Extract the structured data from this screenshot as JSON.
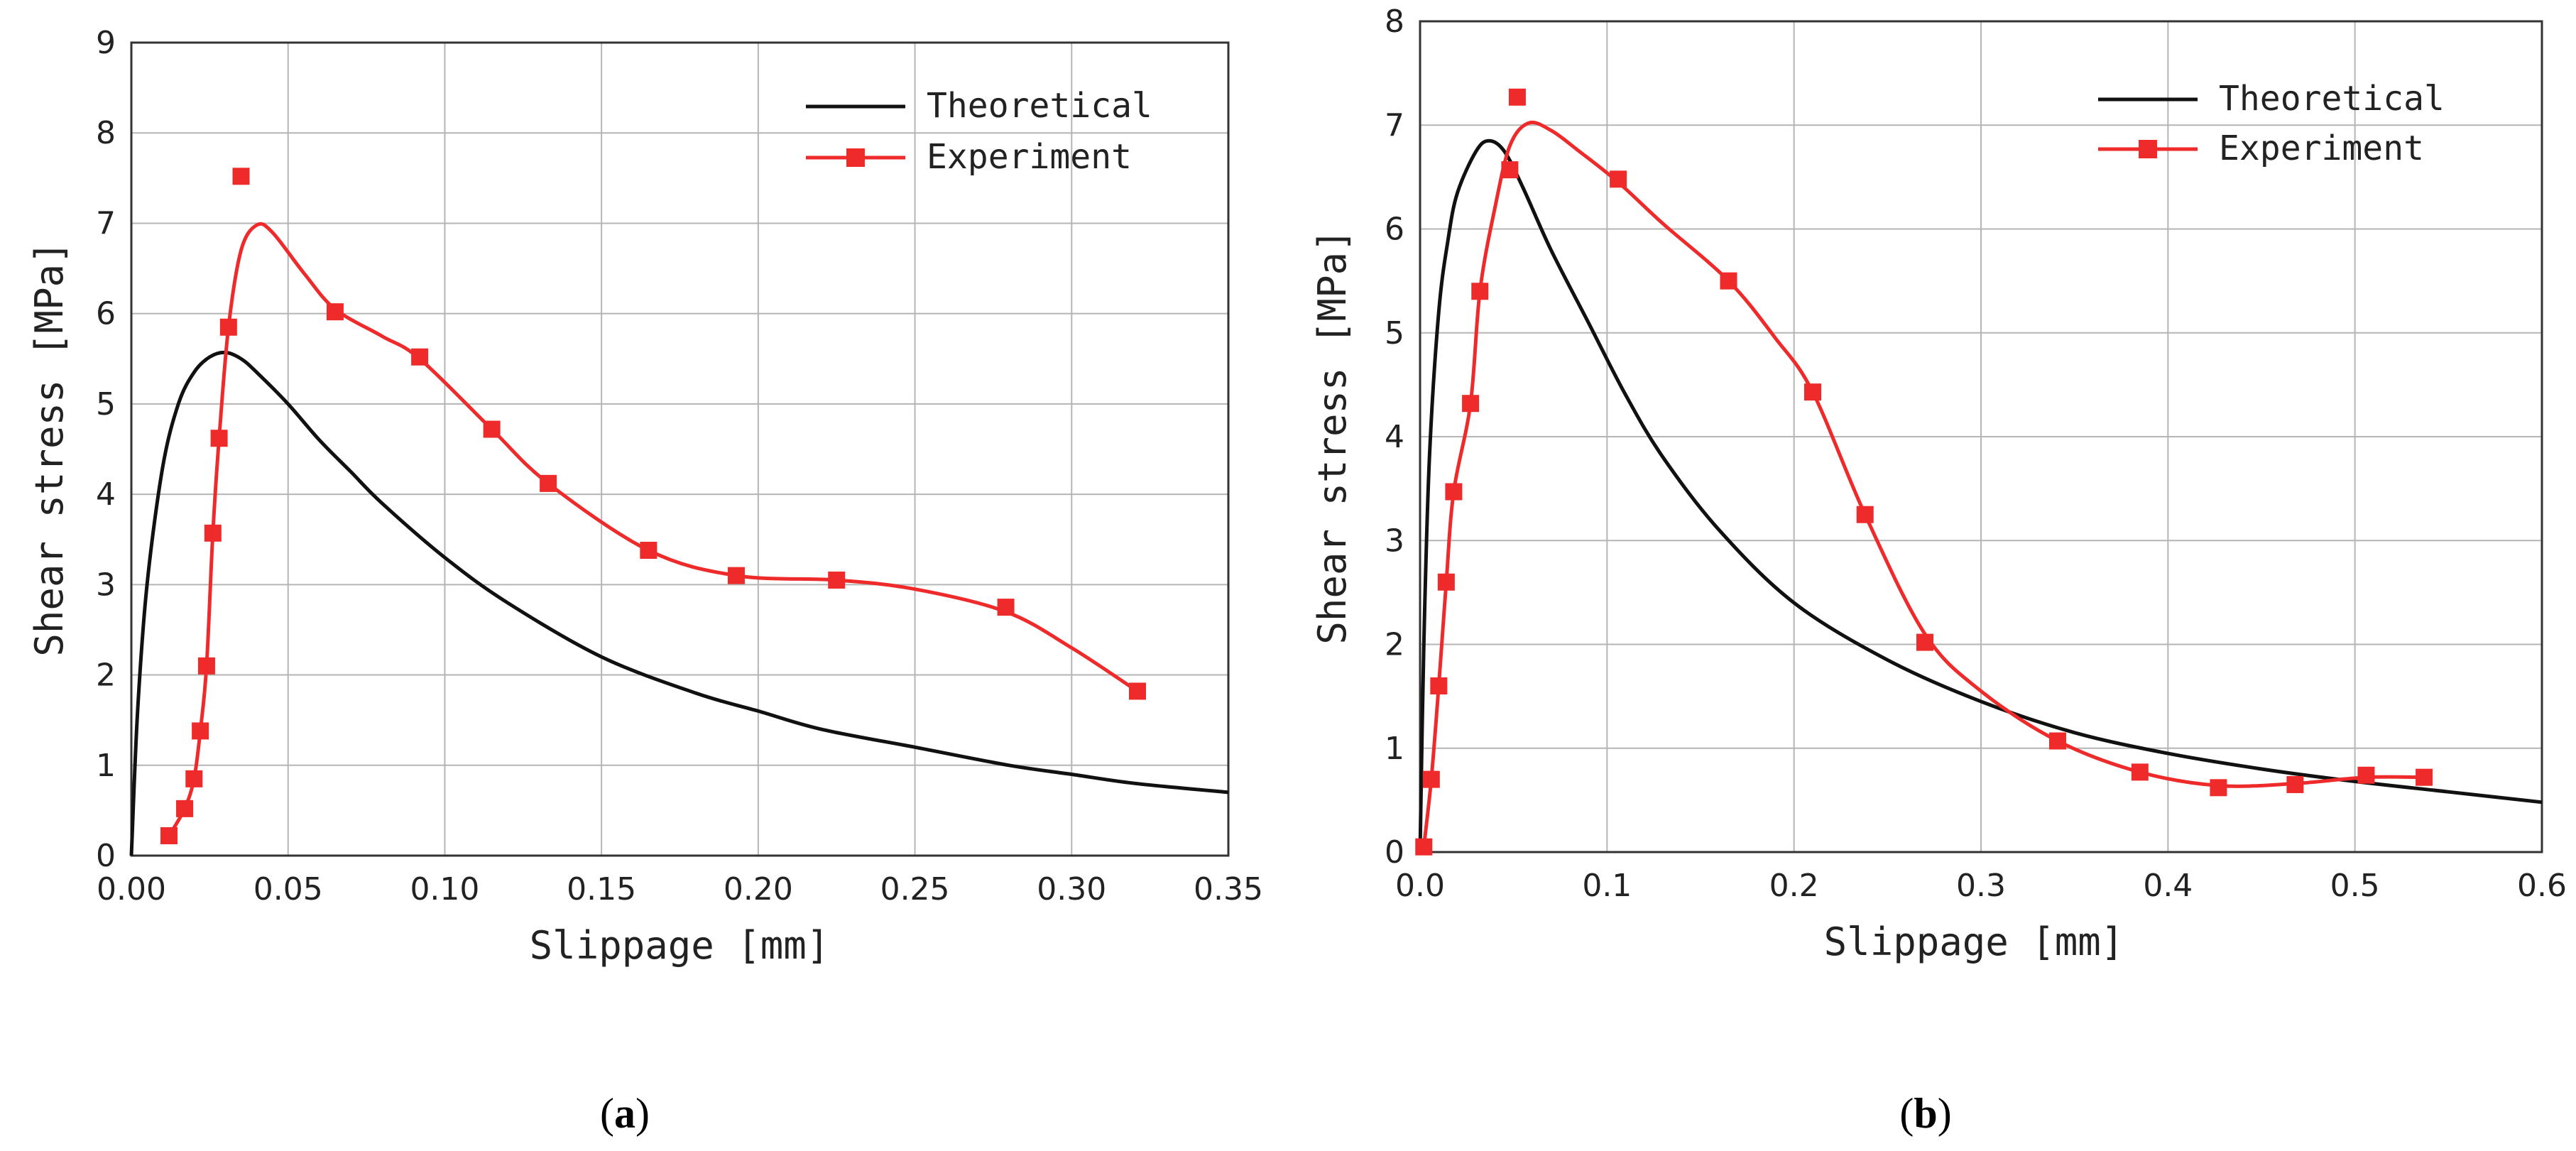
{
  "chart_data": [
    {
      "type": "line",
      "panel_label": "a",
      "xlabel": "Slippage [mm]",
      "ylabel": "Shear stress [MPa]",
      "xlim": [
        0,
        0.35
      ],
      "ylim": [
        0,
        9
      ],
      "xticks": [
        "0.00",
        "0.05",
        "0.10",
        "0.15",
        "0.20",
        "0.25",
        "0.30",
        "0.35"
      ],
      "yticks": [
        "0",
        "1",
        "2",
        "3",
        "4",
        "5",
        "6",
        "7",
        "8",
        "9"
      ],
      "grid": true,
      "legend_position": "top-right",
      "series": [
        {
          "name": "Theoretical",
          "color": "#111111",
          "marker": "none",
          "x": [
            0,
            0.002,
            0.005,
            0.01,
            0.015,
            0.02,
            0.025,
            0.03,
            0.035,
            0.04,
            0.05,
            0.06,
            0.07,
            0.08,
            0.1,
            0.12,
            0.15,
            0.18,
            0.2,
            0.22,
            0.25,
            0.28,
            0.3,
            0.32,
            0.35
          ],
          "y": [
            0,
            1.6,
            3.0,
            4.3,
            5.0,
            5.35,
            5.52,
            5.57,
            5.5,
            5.35,
            5.0,
            4.6,
            4.25,
            3.9,
            3.3,
            2.8,
            2.2,
            1.8,
            1.6,
            1.4,
            1.2,
            1.0,
            0.9,
            0.8,
            0.7
          ]
        },
        {
          "name": "Experiment",
          "color": "#ee2a2a",
          "marker": "square",
          "x": [
            0.012,
            0.017,
            0.02,
            0.022,
            0.024,
            0.026,
            0.028,
            0.031,
            0.035,
            0.065,
            0.092,
            0.115,
            0.133,
            0.165,
            0.193,
            0.225,
            0.279,
            0.321
          ],
          "y": [
            0.22,
            0.52,
            0.85,
            1.38,
            2.1,
            3.57,
            4.62,
            5.85,
            7.52,
            6.02,
            5.52,
            4.72,
            4.12,
            3.38,
            3.1,
            3.05,
            2.75,
            1.82
          ],
          "curve_x": [
            0.012,
            0.017,
            0.02,
            0.022,
            0.024,
            0.026,
            0.028,
            0.031,
            0.035,
            0.04,
            0.045,
            0.055,
            0.065,
            0.08,
            0.092,
            0.115,
            0.133,
            0.165,
            0.193,
            0.225,
            0.25,
            0.279,
            0.3,
            0.321
          ],
          "curve_y": [
            0.22,
            0.52,
            0.85,
            1.38,
            2.1,
            3.57,
            4.62,
            5.85,
            6.7,
            6.98,
            6.9,
            6.45,
            6.05,
            5.75,
            5.5,
            4.72,
            4.12,
            3.38,
            3.1,
            3.05,
            2.95,
            2.7,
            2.3,
            1.82
          ]
        }
      ]
    },
    {
      "type": "line",
      "panel_label": "b",
      "xlabel": "Slippage [mm]",
      "ylabel": "Shear stress [MPa]",
      "xlim": [
        0,
        0.6
      ],
      "ylim": [
        0,
        8
      ],
      "xticks": [
        "0.0",
        "0.1",
        "0.2",
        "0.3",
        "0.4",
        "0.5",
        "0.6"
      ],
      "yticks": [
        "0",
        "1",
        "2",
        "3",
        "4",
        "5",
        "6",
        "7",
        "8"
      ],
      "grid": true,
      "legend_position": "top-right",
      "series": [
        {
          "name": "Theoretical",
          "color": "#111111",
          "marker": "none",
          "x": [
            0,
            0.002,
            0.005,
            0.01,
            0.015,
            0.02,
            0.03,
            0.037,
            0.045,
            0.055,
            0.07,
            0.09,
            0.11,
            0.13,
            0.16,
            0.2,
            0.25,
            0.3,
            0.35,
            0.4,
            0.45,
            0.5,
            0.55,
            0.6
          ],
          "y": [
            0,
            2.0,
            3.8,
            5.2,
            5.9,
            6.35,
            6.75,
            6.85,
            6.75,
            6.4,
            5.8,
            5.1,
            4.4,
            3.8,
            3.1,
            2.4,
            1.85,
            1.45,
            1.15,
            0.95,
            0.8,
            0.68,
            0.58,
            0.48
          ]
        },
        {
          "name": "Experiment",
          "color": "#ee2a2a",
          "marker": "square",
          "x": [
            0.002,
            0.006,
            0.01,
            0.014,
            0.018,
            0.027,
            0.032,
            0.048,
            0.052,
            0.106,
            0.165,
            0.21,
            0.238,
            0.27,
            0.341,
            0.385,
            0.427,
            0.468,
            0.506,
            0.537
          ],
          "y": [
            0.05,
            0.7,
            1.6,
            2.6,
            3.47,
            4.32,
            5.4,
            6.57,
            7.27,
            6.48,
            5.5,
            4.43,
            3.25,
            2.02,
            1.07,
            0.77,
            0.62,
            0.65,
            0.74,
            0.72
          ],
          "curve_x": [
            0.002,
            0.006,
            0.01,
            0.014,
            0.018,
            0.027,
            0.032,
            0.04,
            0.048,
            0.058,
            0.07,
            0.085,
            0.106,
            0.13,
            0.165,
            0.19,
            0.21,
            0.238,
            0.27,
            0.3,
            0.341,
            0.385,
            0.427,
            0.468,
            0.506,
            0.537
          ],
          "curve_y": [
            0.05,
            0.7,
            1.6,
            2.6,
            3.47,
            4.32,
            5.4,
            6.2,
            6.8,
            7.02,
            6.95,
            6.75,
            6.45,
            6.05,
            5.5,
            4.95,
            4.43,
            3.25,
            2.1,
            1.55,
            1.07,
            0.77,
            0.64,
            0.66,
            0.72,
            0.72
          ]
        }
      ]
    }
  ]
}
